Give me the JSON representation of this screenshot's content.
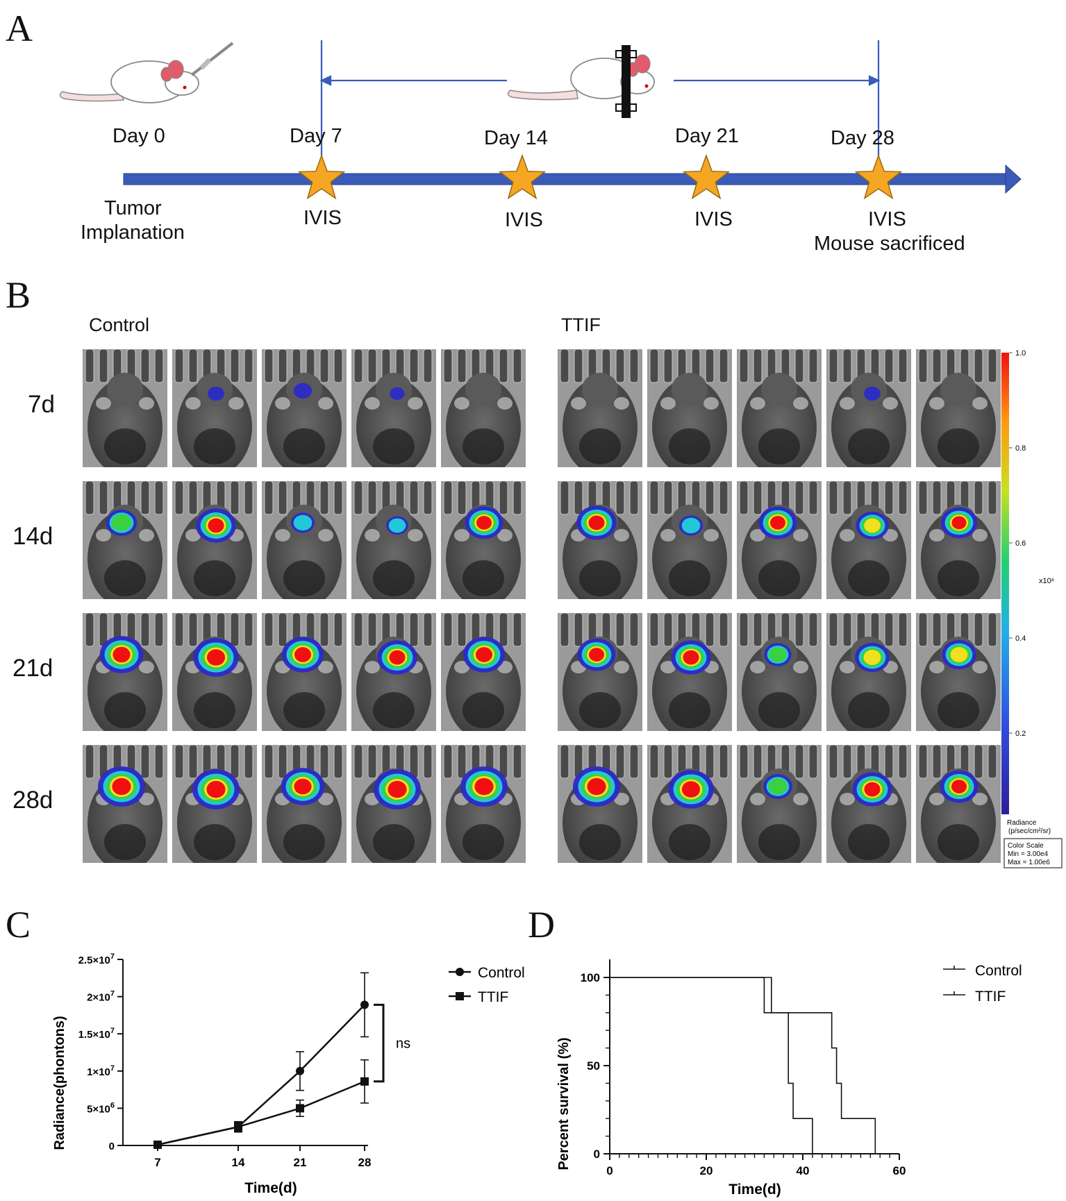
{
  "panels": {
    "a": "A",
    "b": "B",
    "c": "C",
    "d": "D"
  },
  "timeline": {
    "days": [
      "Day 0",
      "Day 7",
      "Day 14",
      "Day 21",
      "Day 28"
    ],
    "below": {
      "tumor_1": "Tumor",
      "tumor_2": "Implanation",
      "ivis": [
        "IVIS",
        "IVIS",
        "IVIS",
        "IVIS"
      ],
      "sacrificed": "Mouse sacrificed"
    },
    "colors": {
      "arrow": "#3a5bb8",
      "star": "#f5a623",
      "bracket": "#3a5bb8"
    }
  },
  "imaging": {
    "groups": [
      "Control",
      "TTIF"
    ],
    "rows": [
      "7d",
      "14d",
      "21d",
      "28d"
    ],
    "signal_levels": {
      "Control": [
        [
          0,
          0.15,
          0.2,
          0.1,
          0
        ],
        [
          0.55,
          0.8,
          0.35,
          0.3,
          0.75
        ],
        [
          0.9,
          0.95,
          0.85,
          0.8,
          0.85
        ],
        [
          1.0,
          1.0,
          0.9,
          1.0,
          1.0
        ]
      ],
      "TTIF": [
        [
          0,
          0,
          0,
          0.15,
          0
        ],
        [
          0.8,
          0.35,
          0.75,
          0.6,
          0.7
        ],
        [
          0.75,
          0.8,
          0.45,
          0.65,
          0.65
        ],
        [
          1.0,
          0.95,
          0.5,
          0.8,
          0.75
        ]
      ]
    },
    "scale": {
      "ticks": [
        "1.0",
        "0.8",
        "0.6",
        "0.4",
        "0.2"
      ],
      "multiplier": "x10⁶",
      "radiance_1": "Radiance",
      "radiance_2": "(p/sec/cm²/sr)",
      "box": [
        "Color Scale",
        "Min = 3.00e4",
        "Max = 1.00e6"
      ]
    }
  },
  "chart_data": [
    {
      "type": "line",
      "x": [
        7,
        14,
        21,
        28
      ],
      "xticks": [
        "7",
        "14",
        "21",
        "28"
      ],
      "xlabel": "Time(d)",
      "ylabel": "Radiance(phontons)",
      "ylim": [
        0,
        25000000
      ],
      "yticks": [
        0,
        5000000,
        10000000,
        15000000,
        20000000,
        25000000
      ],
      "ytick_labels": [
        {
          "base": "0",
          "exp": ""
        },
        {
          "base": "5×10",
          "exp": "6"
        },
        {
          "base": "1×10",
          "exp": "7"
        },
        {
          "base": "1.5×10",
          "exp": "7"
        },
        {
          "base": "2×10",
          "exp": "7"
        },
        {
          "base": "2.5×10",
          "exp": "7"
        }
      ],
      "series": [
        {
          "name": "Control",
          "marker": "circle",
          "values": [
            100000,
            2500000,
            10000000,
            18900000
          ],
          "errors": [
            0,
            700000,
            2600000,
            4300000
          ]
        },
        {
          "name": "TTIF",
          "marker": "square",
          "values": [
            100000,
            2500000,
            5000000,
            8600000
          ],
          "errors": [
            0,
            600000,
            1100000,
            2900000
          ]
        }
      ],
      "annotation": "ns",
      "legend": "top-right"
    },
    {
      "type": "line",
      "step": true,
      "xlabel": "Time(d)",
      "ylabel": "Percent survival (%)",
      "xlim": [
        0,
        60
      ],
      "xticks": [
        "0",
        "20",
        "40",
        "60"
      ],
      "ylim": [
        0,
        100
      ],
      "yticks": [
        "0",
        "50",
        "100"
      ],
      "series": [
        {
          "name": "Control",
          "x": [
            0,
            32,
            32,
            37,
            37,
            38,
            38,
            42,
            42
          ],
          "y": [
            100,
            100,
            80,
            80,
            40,
            40,
            20,
            20,
            0
          ]
        },
        {
          "name": "TTIF",
          "x": [
            0,
            33.5,
            33.5,
            46,
            46,
            47,
            47,
            48,
            48,
            55,
            55
          ],
          "y": [
            100,
            100,
            80,
            80,
            60,
            60,
            40,
            40,
            20,
            20,
            0
          ]
        }
      ],
      "legend": "top-right"
    }
  ]
}
